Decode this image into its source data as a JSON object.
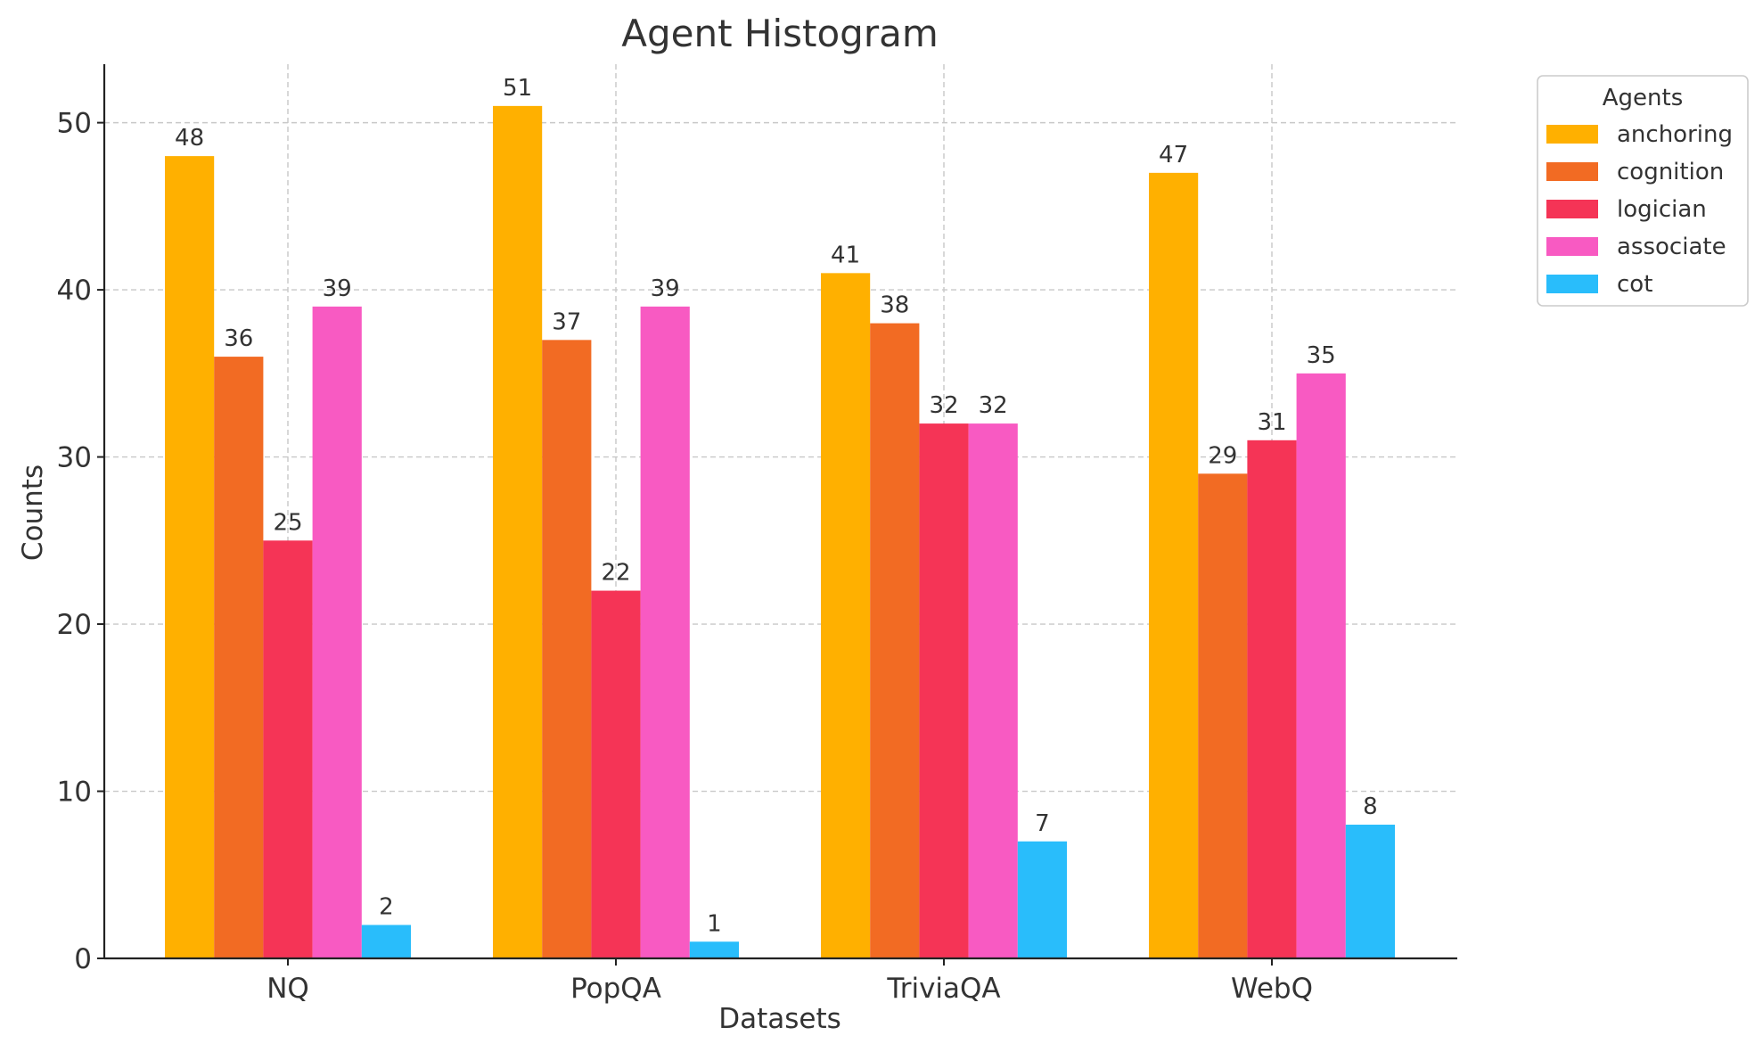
{
  "chart_data": {
    "type": "bar",
    "title": "Agent Histogram",
    "xlabel": "Datasets",
    "ylabel": "Counts",
    "categories": [
      "NQ",
      "PopQA",
      "TriviaQA",
      "WebQ"
    ],
    "ylim": [
      0,
      53.5
    ],
    "yticks": [
      0,
      10,
      20,
      30,
      40,
      50
    ],
    "grid": true,
    "legend": {
      "title": "Agents",
      "placement": "outside-top-right"
    },
    "series": [
      {
        "name": "anchoring",
        "color": "#FFB000",
        "values": [
          48,
          51,
          41,
          47
        ]
      },
      {
        "name": "cognition",
        "color": "#F26B23",
        "values": [
          36,
          37,
          38,
          29
        ]
      },
      {
        "name": "logician",
        "color": "#F53456",
        "values": [
          25,
          22,
          32,
          31
        ]
      },
      {
        "name": "associate",
        "color": "#F85AC2",
        "values": [
          39,
          39,
          32,
          35
        ]
      },
      {
        "name": "cot",
        "color": "#29BDFB",
        "values": [
          2,
          1,
          7,
          8
        ]
      }
    ]
  }
}
